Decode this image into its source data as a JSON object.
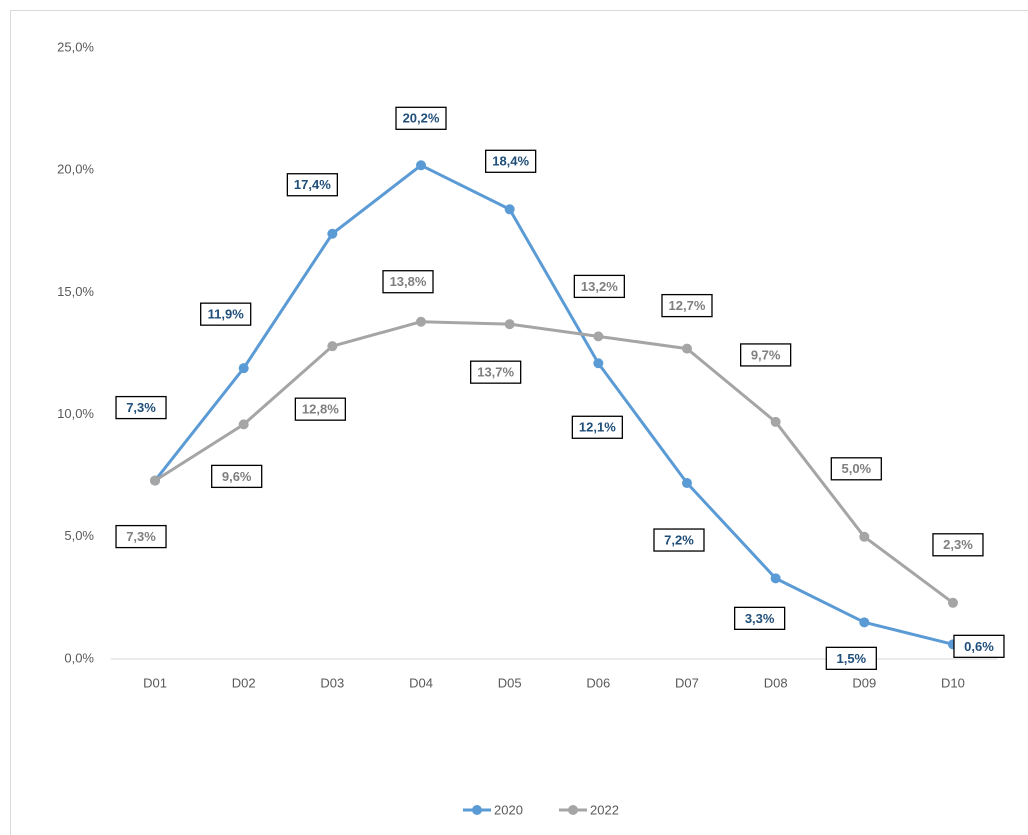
{
  "chart_data": {
    "type": "line",
    "categories": [
      "D01",
      "D02",
      "D03",
      "D04",
      "D05",
      "D06",
      "D07",
      "D08",
      "D09",
      "D10"
    ],
    "series": [
      {
        "name": "2020",
        "color": "#5b9bd5",
        "values": [
          7.3,
          11.9,
          17.4,
          20.2,
          18.4,
          12.1,
          7.2,
          3.3,
          1.5,
          0.6
        ],
        "value_labels": [
          "7,3%",
          "11,9%",
          "17,4%",
          "20,2%",
          "18,4%",
          "12,1%",
          "7,2%",
          "3,3%",
          "1,5%",
          "0,6%"
        ]
      },
      {
        "name": "2022",
        "color": "#a5a5a5",
        "values": [
          7.3,
          9.6,
          12.8,
          13.8,
          13.7,
          13.2,
          12.7,
          9.7,
          5.0,
          2.3
        ],
        "value_labels": [
          "7,3%",
          "9,6%",
          "12,8%",
          "13,8%",
          "13,7%",
          "13,2%",
          "12,7%",
          "9,7%",
          "5,0%",
          "2,3%"
        ]
      }
    ],
    "ylim": [
      0,
      25
    ],
    "yticks": [
      {
        "value": 0,
        "label": "0,0%"
      },
      {
        "value": 5,
        "label": "5,0%"
      },
      {
        "value": 10,
        "label": "10,0%"
      },
      {
        "value": 15,
        "label": "15,0%"
      },
      {
        "value": 20,
        "label": "20,0%"
      },
      {
        "value": 25,
        "label": "25,0%"
      }
    ],
    "grid": false,
    "legend": "bottom"
  }
}
